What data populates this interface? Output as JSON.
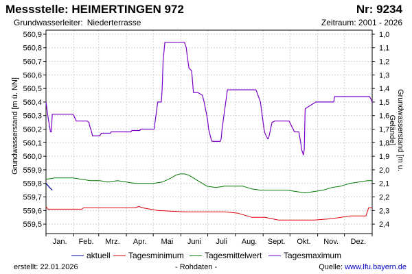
{
  "header": {
    "title": "Messstelle: HEIMERTINGEN 972",
    "nr": "Nr: 9234",
    "aquifer_label": "Grundwasserleiter:",
    "aquifer_value": "Niederterrasse",
    "period": "Zeitraum: 2001 - 2026"
  },
  "footer": {
    "created": "erstellt:  22.01.2026",
    "rawdata": "- Rohdaten -",
    "source_label": "Quelle: ",
    "source_url": "www.lfu.bayern.de"
  },
  "chart_data": {
    "type": "line",
    "ylabel": "Grundwasserstand [m ü. NN]",
    "ylabel_right": "Grundwasserstand [m u. Gelände]",
    "ylim": [
      559.43,
      560.93
    ],
    "y_ticks": [
      559.5,
      559.6,
      559.7,
      559.8,
      559.9,
      560.0,
      560.1,
      560.2,
      560.3,
      560.4,
      560.5,
      560.6,
      560.7,
      560.8,
      560.9
    ],
    "y_tick_labels": [
      "559,5",
      "559,6",
      "559,7",
      "559,8",
      "559,9",
      "560,0",
      "560,1",
      "560,2",
      "560,3",
      "560,4",
      "560,5",
      "560,6",
      "560,7",
      "560,8",
      "560,9"
    ],
    "y2_ticks": [
      1.0,
      1.1,
      1.2,
      1.3,
      1.4,
      1.5,
      1.6,
      1.7,
      1.8,
      1.9,
      2.0,
      2.1,
      2.2,
      2.3,
      2.4
    ],
    "y2_tick_labels": [
      "1,0",
      "1,1",
      "1,2",
      "1,3",
      "1,4",
      "1,5",
      "1,6",
      "1,7",
      "1,8",
      "1,9",
      "2,0",
      "2,1",
      "2,2",
      "2,3",
      "2,4"
    ],
    "y2_reference": 561.9,
    "xlim": [
      0,
      365
    ],
    "months": [
      "Jan.",
      "Feb.",
      "Mrz.",
      "Apr.",
      "Mai",
      "Juni",
      "Juli",
      "Aug.",
      "Sept.",
      "Okt.",
      "Nov.",
      "Dez."
    ],
    "month_boundaries": [
      0,
      31,
      59,
      90,
      120,
      151,
      181,
      212,
      243,
      273,
      304,
      334,
      365
    ],
    "grid": true,
    "legend_position": "bottom",
    "series": [
      {
        "name": "aktuell",
        "color": "#0000a0",
        "x": [
          0,
          4,
          7
        ],
        "y": [
          559.8,
          559.77,
          559.75
        ]
      },
      {
        "name": "Tagesminimum",
        "color": "#e0000a",
        "x": [
          0,
          2,
          40,
          42,
          80,
          100,
          104,
          108,
          125,
          155,
          165,
          200,
          215,
          230,
          245,
          260,
          270,
          300,
          320,
          340,
          358,
          361,
          365
        ],
        "y": [
          559.63,
          559.61,
          559.61,
          559.62,
          559.62,
          559.62,
          559.63,
          559.62,
          559.6,
          559.59,
          559.59,
          559.59,
          559.58,
          559.55,
          559.55,
          559.53,
          559.53,
          559.53,
          559.54,
          559.56,
          559.56,
          559.62,
          559.62
        ],
        "line_width": 1
      },
      {
        "name": "Tagesmittelwert",
        "color": "#007a00",
        "x": [
          0,
          10,
          20,
          30,
          40,
          50,
          60,
          70,
          80,
          90,
          100,
          110,
          120,
          130,
          140,
          145,
          150,
          155,
          160,
          165,
          170,
          180,
          190,
          200,
          210,
          220,
          230,
          240,
          250,
          260,
          270,
          280,
          290,
          300,
          310,
          320,
          330,
          340,
          350,
          360,
          365
        ],
        "y": [
          559.83,
          559.84,
          559.84,
          559.84,
          559.83,
          559.82,
          559.82,
          559.81,
          559.82,
          559.81,
          559.8,
          559.8,
          559.8,
          559.81,
          559.84,
          559.86,
          559.87,
          559.87,
          559.86,
          559.84,
          559.82,
          559.78,
          559.77,
          559.78,
          559.78,
          559.78,
          559.76,
          559.75,
          559.75,
          559.75,
          559.75,
          559.74,
          559.73,
          559.74,
          559.75,
          559.77,
          559.78,
          559.8,
          559.81,
          559.82,
          559.82
        ],
        "line_width": 1
      },
      {
        "name": "Tagesmaximum",
        "color": "#7a00c8",
        "x": [
          0,
          1,
          2,
          4,
          5,
          6,
          7,
          30,
          31,
          34,
          45,
          46,
          48,
          49,
          50,
          51,
          52,
          60,
          61,
          62,
          72,
          73,
          74,
          95,
          96,
          105,
          106,
          108,
          121,
          122,
          125,
          128,
          129,
          130,
          131,
          133,
          155,
          157,
          158,
          160,
          163,
          164,
          165,
          170,
          175,
          177,
          180,
          181,
          182,
          185,
          186,
          195,
          196,
          197,
          203,
          210,
          215,
          225,
          235,
          240,
          244,
          245,
          248,
          249,
          252,
          253,
          256,
          271,
          272,
          278,
          283,
          285,
          286,
          288,
          289,
          290,
          302,
          303,
          322,
          323,
          362,
          363,
          365
        ],
        "y": [
          560.4,
          560.35,
          560.3,
          560.22,
          560.18,
          560.18,
          560.31,
          560.31,
          560.3,
          560.26,
          560.26,
          560.26,
          560.25,
          560.22,
          560.2,
          560.18,
          560.15,
          560.15,
          560.16,
          560.17,
          560.17,
          560.18,
          560.18,
          560.18,
          560.19,
          560.19,
          560.2,
          560.2,
          560.2,
          560.25,
          560.4,
          560.4,
          560.4,
          560.5,
          560.7,
          560.84,
          560.84,
          560.8,
          560.74,
          560.65,
          560.63,
          560.55,
          560.47,
          560.47,
          560.45,
          560.4,
          560.3,
          560.26,
          560.2,
          560.12,
          560.11,
          560.11,
          560.13,
          560.2,
          560.49,
          560.49,
          560.49,
          560.49,
          560.49,
          560.4,
          560.2,
          560.17,
          560.13,
          560.13,
          560.22,
          560.25,
          560.26,
          560.26,
          560.26,
          560.18,
          560.18,
          560.1,
          560.05,
          560.01,
          560.05,
          560.35,
          560.4,
          560.4,
          560.4,
          560.44,
          560.44,
          560.43,
          560.4
        ],
        "line_width": 1.2
      }
    ]
  }
}
